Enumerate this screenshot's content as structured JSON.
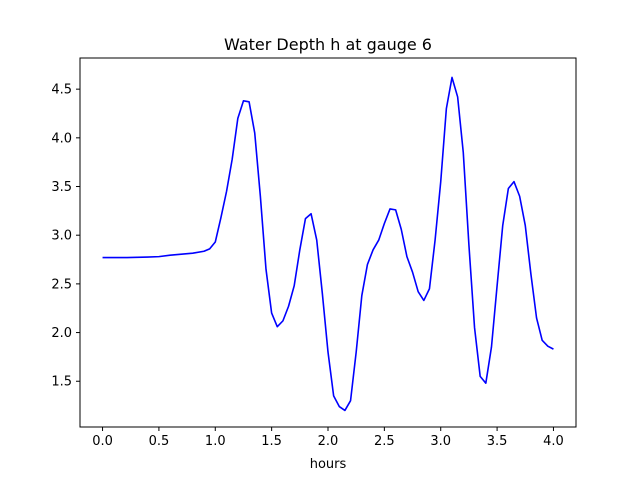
{
  "chart_data": {
    "type": "line",
    "title": "Water Depth h at gauge 6",
    "xlabel": "hours",
    "ylabel": "",
    "xlim": [
      -0.2,
      4.2
    ],
    "ylim": [
      1.03,
      4.82
    ],
    "xticks": [
      "0.0",
      "0.5",
      "1.0",
      "1.5",
      "2.0",
      "2.5",
      "3.0",
      "3.5",
      "4.0"
    ],
    "yticks": [
      "1.5",
      "2.0",
      "2.5",
      "3.0",
      "3.5",
      "4.0",
      "4.5"
    ],
    "grid": false,
    "series": [
      {
        "color": "#0000ff",
        "x": [
          0.0,
          0.2,
          0.4,
          0.5,
          0.6,
          0.7,
          0.8,
          0.9,
          0.95,
          1.0,
          1.05,
          1.1,
          1.15,
          1.2,
          1.25,
          1.3,
          1.35,
          1.4,
          1.45,
          1.5,
          1.55,
          1.6,
          1.65,
          1.7,
          1.75,
          1.8,
          1.85,
          1.9,
          1.95,
          2.0,
          2.05,
          2.1,
          2.15,
          2.2,
          2.25,
          2.3,
          2.35,
          2.4,
          2.45,
          2.5,
          2.55,
          2.6,
          2.65,
          2.7,
          2.75,
          2.8,
          2.85,
          2.9,
          2.95,
          3.0,
          3.05,
          3.1,
          3.15,
          3.2,
          3.25,
          3.3,
          3.35,
          3.4,
          3.45,
          3.5,
          3.55,
          3.6,
          3.65,
          3.7,
          3.75,
          3.8,
          3.85,
          3.9,
          3.95,
          4.0
        ],
        "y": [
          2.77,
          2.77,
          2.775,
          2.78,
          2.795,
          2.805,
          2.815,
          2.835,
          2.86,
          2.93,
          3.18,
          3.45,
          3.78,
          4.2,
          4.38,
          4.37,
          4.05,
          3.4,
          2.65,
          2.2,
          2.06,
          2.12,
          2.27,
          2.48,
          2.85,
          3.17,
          3.22,
          2.95,
          2.4,
          1.8,
          1.35,
          1.24,
          1.2,
          1.3,
          1.8,
          2.38,
          2.7,
          2.85,
          2.95,
          3.12,
          3.27,
          3.26,
          3.06,
          2.78,
          2.62,
          2.42,
          2.33,
          2.45,
          2.95,
          3.55,
          4.3,
          4.62,
          4.42,
          3.85,
          2.9,
          2.05,
          1.55,
          1.48,
          1.85,
          2.48,
          3.1,
          3.48,
          3.55,
          3.4,
          3.1,
          2.6,
          2.15,
          1.92,
          1.86,
          1.83
        ]
      }
    ]
  }
}
